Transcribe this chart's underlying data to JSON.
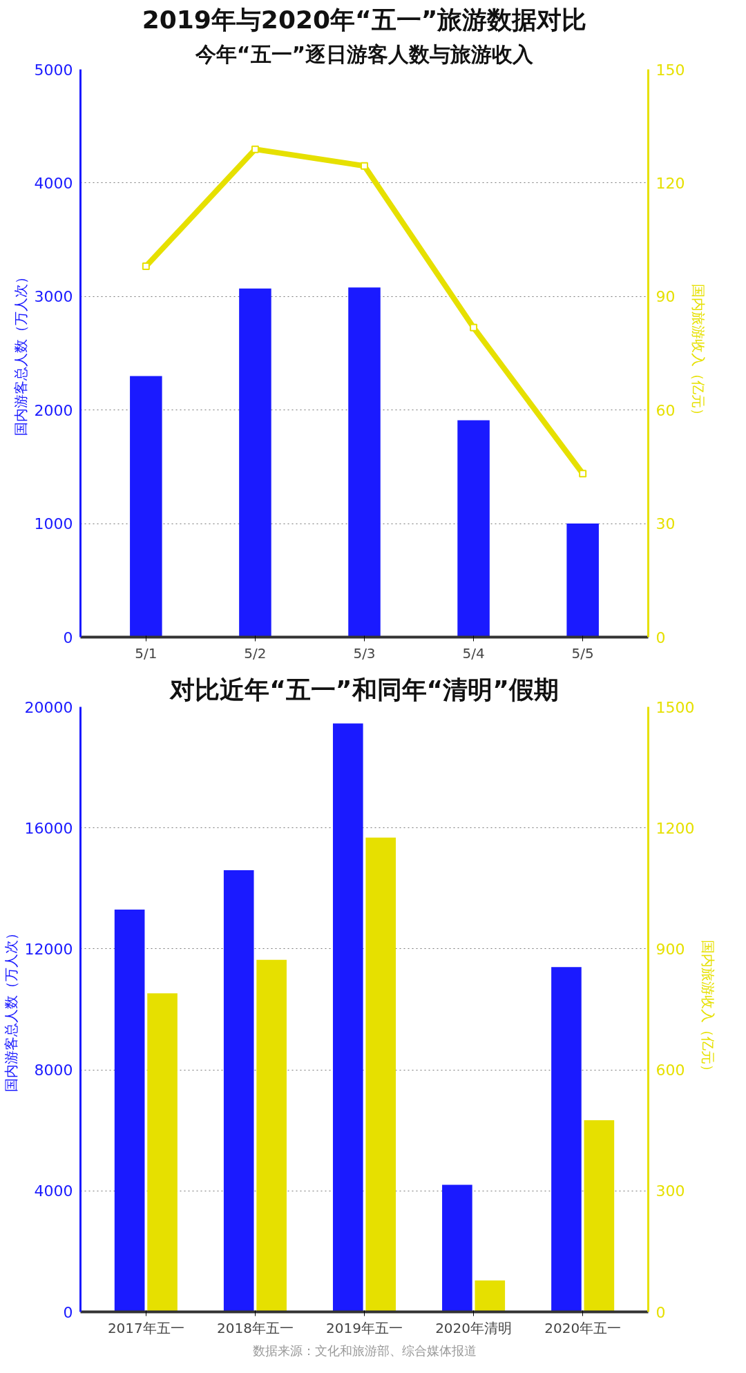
{
  "chart_data": [
    {
      "type": "bar",
      "title": "2019年与2020年“五一”旅游数据对比",
      "subtitle": "今年“五一”逐日游客人数与旅游收入",
      "categories": [
        "5/1",
        "5/2",
        "5/3",
        "5/4",
        "5/5"
      ],
      "ylabel": "国内游客总人数（万人次）",
      "y2label": "国内旅游收入（亿元）",
      "ylim": [
        0,
        5000
      ],
      "yticks": [
        0,
        1000,
        2000,
        3000,
        4000,
        5000
      ],
      "y2lim": [
        0,
        150
      ],
      "y2ticks": [
        0,
        30,
        60,
        90,
        120,
        150
      ],
      "grid": "y",
      "marker": "square",
      "series": [
        {
          "color": "#1a1aff",
          "values": [
            2300,
            3070,
            3080,
            1910,
            1000
          ]
        },
        {
          "type": "line",
          "axis": "y2",
          "color": "#e6e000",
          "values": [
            98,
            128.9,
            124.5,
            81.8,
            43.2
          ]
        }
      ]
    },
    {
      "type": "bar",
      "title": "对比近年“五一”和同年“清明”假期",
      "categories": [
        "2017年五一",
        "2018年五一",
        "2019年五一",
        "2020年清明",
        "2020年五一"
      ],
      "ylabel": "国内游客总人数（万人次）",
      "y2label": "国内旅游收入（亿元）",
      "ylim": [
        0,
        20000
      ],
      "yticks": [
        0,
        4000,
        8000,
        12000,
        16000,
        20000
      ],
      "y2lim": [
        0,
        1500
      ],
      "y2ticks": [
        0,
        300,
        600,
        900,
        1200,
        1500
      ],
      "grid": "y",
      "annotations": [
        "数据来源：文化和旅游部、综合媒体报道"
      ],
      "series": [
        {
          "color": "#1a1aff",
          "values": [
            13300,
            14600,
            19450,
            4200,
            11400
          ]
        },
        {
          "axis": "y2",
          "color": "#e6e000",
          "values": [
            790,
            873,
            1176,
            78,
            475
          ]
        }
      ]
    }
  ]
}
